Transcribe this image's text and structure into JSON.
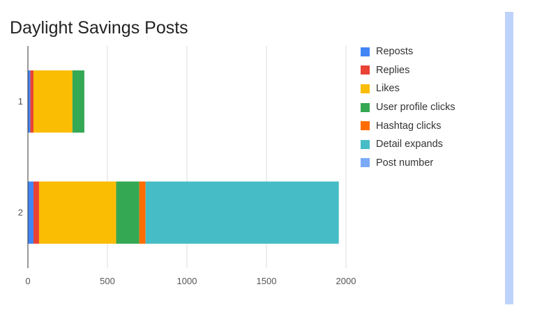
{
  "chart_data": {
    "type": "bar",
    "orientation": "horizontal",
    "stacked": true,
    "title": "Daylight Savings Posts",
    "xlabel": "",
    "ylabel": "",
    "categories": [
      "1",
      "2"
    ],
    "xlim": [
      0,
      2000
    ],
    "xticks": [
      "0",
      "500",
      "1000",
      "1500",
      "2000"
    ],
    "grid": true,
    "legend_position": "right",
    "series": [
      {
        "name": "Reposts",
        "color": "#4285f4",
        "values": [
          15,
          35
        ]
      },
      {
        "name": "Replies",
        "color": "#ea4335",
        "values": [
          20,
          35
        ]
      },
      {
        "name": "Likes",
        "color": "#fbbc04",
        "values": [
          245,
          485
        ]
      },
      {
        "name": "User profile clicks",
        "color": "#34a853",
        "values": [
          75,
          145
        ]
      },
      {
        "name": "Hashtag clicks",
        "color": "#ff6d01",
        "values": [
          0,
          40
        ]
      },
      {
        "name": "Detail expands",
        "color": "#46bdc6",
        "values": [
          0,
          1215
        ]
      },
      {
        "name": "Post number",
        "color": "#7baaf7",
        "values": [
          0,
          0
        ]
      }
    ]
  }
}
